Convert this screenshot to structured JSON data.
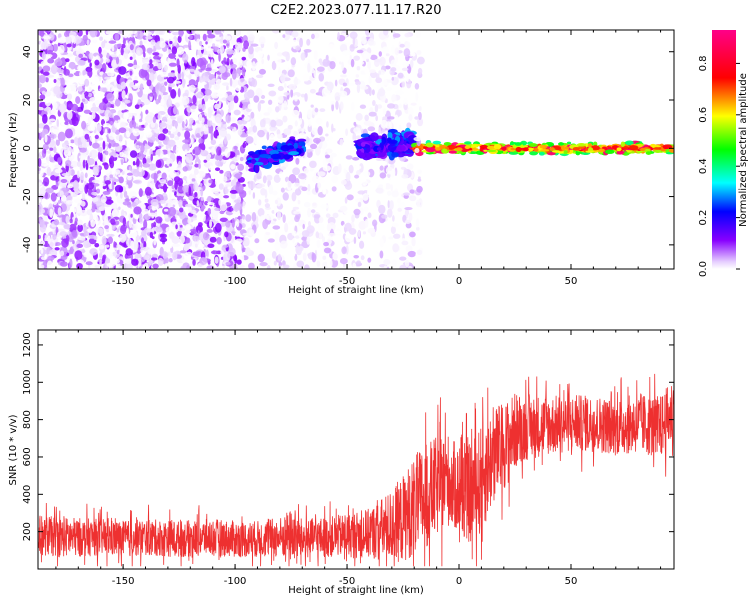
{
  "title": "C2E2.2023.077.11.17.R20",
  "chart_data": [
    {
      "type": "heatmap",
      "xlabel": "Height of straight line (km)",
      "ylabel": "Frequency (Hz)",
      "xlim": [
        -188,
        96
      ],
      "ylim": [
        -50,
        49
      ],
      "xticks": [
        -150,
        -100,
        -50,
        0,
        50
      ],
      "yticks": [
        -40,
        -20,
        0,
        20,
        40
      ],
      "colorbar": {
        "label": "Normalized spectral amplitude",
        "range": [
          0,
          0.93
        ],
        "ticks": [
          "0.0",
          "0.2",
          "0.4",
          "0.6",
          "0.8"
        ],
        "colormap": "rainbow (white-purple-blue-cyan-green-yellow-red-magenta)"
      },
      "features": [
        {
          "x_range": [
            -188,
            -95
          ],
          "y_range": [
            -50,
            49
          ],
          "amplitude": [
            0.0,
            0.12
          ]
        },
        {
          "x_range": [
            -95,
            -20
          ],
          "y_range": [
            -50,
            49
          ],
          "amplitude": [
            0.0,
            0.05
          ]
        },
        {
          "x_range": [
            -93,
            -70
          ],
          "y_range": [
            -8,
            3
          ],
          "amplitude": [
            0.1,
            0.3
          ]
        },
        {
          "x_range": [
            -45,
            -20
          ],
          "y_range": [
            -5,
            8
          ],
          "amplitude": [
            0.1,
            0.3
          ]
        },
        {
          "x_range": [
            -20,
            96
          ],
          "y_range": [
            -3,
            3
          ],
          "amplitude": [
            0.3,
            0.9
          ]
        },
        {
          "x_range": [
            -19,
            -17
          ],
          "y_range": [
            -50,
            49
          ],
          "amplitude": [
            0.0,
            0.05
          ]
        }
      ]
    },
    {
      "type": "line",
      "xlabel": "Height of straight line (km)",
      "ylabel": "SNR (10 * v/v)",
      "xlim": [
        -188,
        96
      ],
      "ylim": [
        0,
        1280
      ],
      "xticks": [
        -150,
        -100,
        -50,
        0,
        50
      ],
      "yticks": [
        200,
        400,
        600,
        800,
        1000,
        1200
      ],
      "color": "#ee3030",
      "series": [
        {
          "x": [
            -188,
            -175,
            -160,
            -150,
            -140,
            -125,
            -110,
            -100,
            -90,
            -80,
            -75,
            -70,
            -60,
            -50,
            -40,
            -30,
            -25,
            -20,
            -15,
            -10,
            -5,
            0,
            5,
            10,
            15,
            20,
            25,
            30,
            40,
            50,
            60,
            70,
            80,
            90,
            96
          ],
          "values": [
            180,
            170,
            170,
            160,
            170,
            160,
            170,
            160,
            160,
            170,
            180,
            160,
            170,
            180,
            190,
            230,
            270,
            340,
            380,
            440,
            480,
            420,
            400,
            480,
            600,
            660,
            740,
            760,
            770,
            780,
            780,
            760,
            780,
            760,
            850
          ],
          "spread": [
            120,
            120,
            110,
            110,
            110,
            110,
            110,
            110,
            110,
            120,
            160,
            120,
            120,
            130,
            150,
            220,
            260,
            300,
            320,
            300,
            280,
            260,
            300,
            330,
            300,
            260,
            230,
            200,
            180,
            170,
            170,
            170,
            180,
            190,
            200
          ]
        }
      ]
    }
  ]
}
